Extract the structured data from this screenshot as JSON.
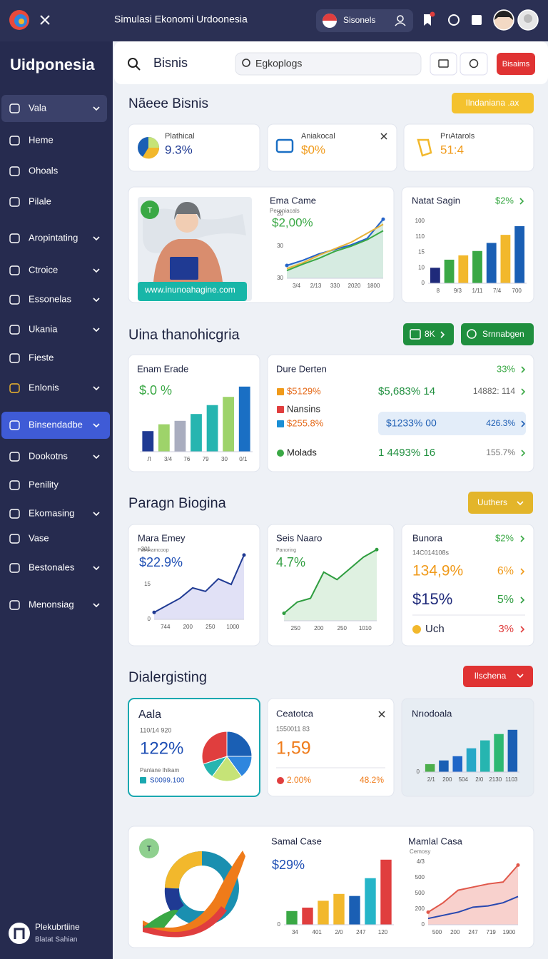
{
  "topbar": {
    "title": "Simulasi Ekonomi Urdoonesia",
    "account": "Sisonels"
  },
  "sidebar": {
    "brand": "Uidponesia",
    "items": [
      "Vala",
      "Heme",
      "Ohoals",
      "Pilale",
      "Aropintating",
      "Ctroice",
      "Essonelas",
      "Ukania",
      "Fieste",
      "Enlonis",
      "Binsendadbe",
      "Dookotns",
      "Penility",
      "Ekomasing",
      "Vase",
      "Bestonales",
      "Menonsiag"
    ],
    "footer": {
      "title": "Plekubrtiine",
      "subtitle": "Blatat Sahian"
    }
  },
  "header": {
    "title": "Bisnis",
    "search": "Egkoplogs",
    "button": "Bisaims"
  },
  "overview": {
    "title": "Nãeee Bisnis",
    "button": "Ilndaniana .ax",
    "stats": [
      {
        "label": "Plathical",
        "value": "9.3%"
      },
      {
        "label": "Aniakocal",
        "value": "$0%"
      },
      {
        "label": "PrıAtarols",
        "value": "51:4"
      }
    ],
    "badge": "T",
    "banner": "www.inunoahagine.com",
    "growth": {
      "type": "line",
      "title": "Ema Came",
      "subtitle": "Pereniacals",
      "value": "$2,00%",
      "ylim": [
        0,
        100
      ],
      "x_labels": [
        "3/4",
        "2/13",
        "330",
        "2020",
        "1800"
      ],
      "y_labels": [
        "20",
        "30",
        "30"
      ],
      "series": [
        {
          "color": "#2563c9",
          "area": "#cfe8dc",
          "values": [
            20,
            28,
            38,
            45,
            52,
            62,
            92
          ]
        },
        {
          "color": "#e8b23a",
          "values": [
            15,
            24,
            36,
            46,
            56,
            70,
            84
          ]
        },
        {
          "color": "#3aa845",
          "values": [
            12,
            22,
            31,
            42,
            50,
            60,
            74
          ]
        }
      ]
    },
    "segment": {
      "type": "bar",
      "title": "Natat Sagin",
      "value": "$2%",
      "ylim": [
        0,
        100
      ],
      "y_labels": [
        "100",
        "110",
        "15",
        "10",
        "0"
      ],
      "x_labels": [
        "8",
        "9/3",
        "1/11",
        "7/4",
        "700"
      ],
      "values": [
        25,
        38,
        45,
        52,
        65,
        78,
        92
      ],
      "colors": [
        "#1f2a7a",
        "#3aa845",
        "#f2b82c",
        "#3aa845",
        "#1a5fb4",
        "#f2b82c",
        "#1a5fb4"
      ]
    }
  },
  "trends": {
    "title": "Uina thanohicgria",
    "buttons": [
      "8K",
      "Srnnabgen"
    ],
    "chart": {
      "type": "bar",
      "title": "Enam Erade",
      "value": "$.0 %",
      "ylim": [
        0,
        100
      ],
      "y_labels": [],
      "x_labels": [
        "Л",
        "3/4",
        "76",
        "79",
        "30",
        "0/1"
      ],
      "values": [
        30,
        40,
        45,
        55,
        68,
        80,
        95
      ],
      "colors": [
        "#1f3a93",
        "#9ed36a",
        "#a9adbf",
        "#26b5b0",
        "#26b5b0",
        "#9ed36a",
        "#1a6fc4"
      ]
    },
    "table": {
      "title": "Dure Derten",
      "value": "33%",
      "rows": [
        {
          "label": "$5129%",
          "main": "$5,683% 14",
          "side": "14882: 114"
        },
        {
          "label": "Nansins"
        },
        {
          "label": "$255.8%",
          "main": "$1233% 00",
          "side": "426.3%"
        },
        {
          "label": "Molads",
          "main": "1 4493% 16",
          "side": "155.7%"
        }
      ]
    }
  },
  "program": {
    "title": "Paragn Biogina",
    "button": "Uuthers",
    "left": {
      "type": "line",
      "title": "Mara Emey",
      "subtitle": "Panoramcoop",
      "value": "$22.9%",
      "ylim": [
        0,
        100
      ],
      "y_labels": [
        "301",
        "15",
        "0"
      ],
      "x_labels": [
        "744",
        "200",
        "250",
        "1000"
      ],
      "series": [
        {
          "color": "#1f3a93",
          "area": "#dcdcf5",
          "values": [
            10,
            20,
            30,
            45,
            40,
            58,
            50,
            92
          ]
        }
      ]
    },
    "mid": {
      "type": "line",
      "title": "Seis Naaro",
      "subtitle": "Panoring",
      "value": "4.7%",
      "ylim": [
        0,
        100
      ],
      "y_labels": [],
      "x_labels": [
        "250",
        "200",
        "250",
        "1010"
      ],
      "series": [
        {
          "color": "#2e9d3f",
          "area": "#d9efdc",
          "values": [
            10,
            25,
            30,
            65,
            55,
            70,
            85,
            95
          ]
        }
      ]
    },
    "right": {
      "title": "Bunora",
      "value": "$2%",
      "subtitle": "14C014108s",
      "rows": [
        {
          "label": "134,9%",
          "value": "6%"
        },
        {
          "label": "$15%",
          "value": "5%"
        },
        {
          "label": "Uch",
          "value": "3%"
        }
      ]
    }
  },
  "digital": {
    "title": "Dialergisting",
    "button": "Ilschena",
    "aala": {
      "title": "Aala",
      "subtitle": "110/14 920",
      "value": "122%",
      "note": "Panlane Ihikam",
      "legend": "S0099.100",
      "pie": {
        "type": "pie",
        "values": [
          25,
          15,
          20,
          10,
          30
        ],
        "colors": [
          "#1a5fb4",
          "#2e86de",
          "#c6e377",
          "#26b5b0",
          "#e03e3e"
        ]
      }
    },
    "ceatotca": {
      "title": "Ceatotca",
      "subtitle": "1550011 83",
      "value": "1,59",
      "left": "2.00%",
      "right": "48.2%"
    },
    "nrio": {
      "type": "bar",
      "title": "Nrıodoala",
      "ylim": [
        0,
        100
      ],
      "y_labels": [
        "0"
      ],
      "x_labels": [
        "2/1",
        "200",
        "504",
        "2/0",
        "2130",
        "1103"
      ],
      "values": [
        15,
        22,
        30,
        45,
        60,
        72,
        80
      ],
      "colors": [
        "#4cae4c",
        "#1a5fb4",
        "#1f66c7",
        "#26a8c7",
        "#26b5b0",
        "#2eb872",
        "#1a5fb4"
      ]
    }
  },
  "bottom": {
    "badge": "T",
    "samal": {
      "type": "bar",
      "title": "Samal Case",
      "value": "$29%",
      "ylim": [
        0,
        100
      ],
      "y_labels": [
        "0"
      ],
      "x_labels": [
        "34",
        "401",
        "2/0",
        "247",
        "120"
      ],
      "values": [
        20,
        25,
        35,
        45,
        42,
        68,
        95
      ],
      "colors": [
        "#3aa845",
        "#e03e3e",
        "#f2b82c",
        "#f2b82c",
        "#1a5fb4",
        "#26b5c8",
        "#e03e3e"
      ]
    },
    "mamlal": {
      "type": "line",
      "title": "Mamlal Casa",
      "subtitle": "Cemosy",
      "ylim": [
        0,
        100
      ],
      "y_labels": [
        "4/3",
        "500",
        "500",
        "200",
        "0"
      ],
      "x_labels": [
        "500",
        "200",
        "247",
        "719",
        "1900"
      ],
      "series": [
        {
          "color": "#e0574a",
          "area": "#f7c9c4",
          "values": [
            20,
            35,
            55,
            60,
            65,
            68,
            95
          ]
        },
        {
          "color": "#2848b0",
          "values": [
            10,
            15,
            20,
            28,
            30,
            35,
            45
          ]
        }
      ]
    }
  }
}
